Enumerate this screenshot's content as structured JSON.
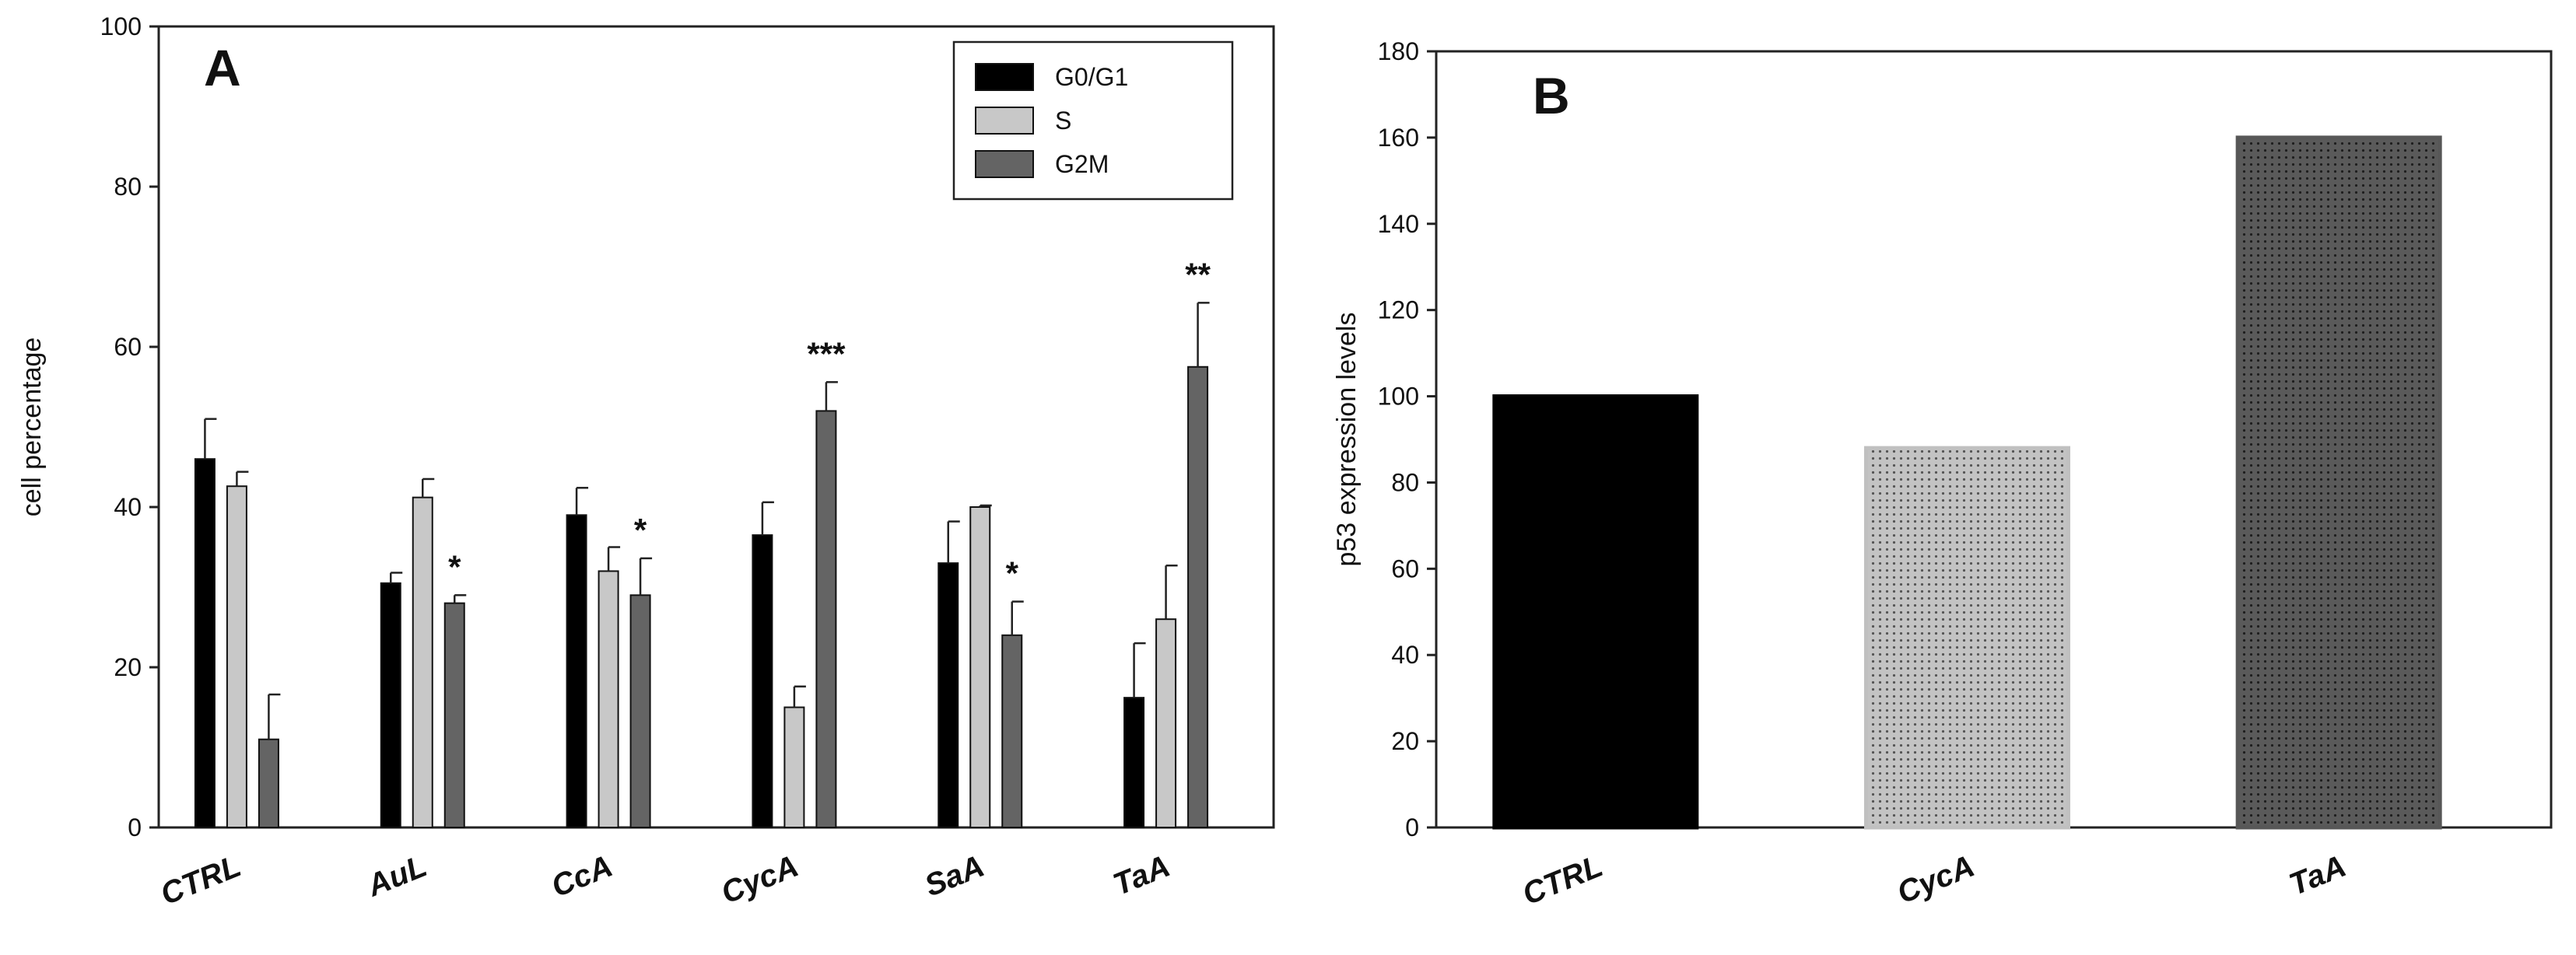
{
  "chart_data": [
    {
      "type": "bar",
      "panel_label": "A",
      "title": "",
      "xlabel": "",
      "ylabel": "cell percentage",
      "ylim": [
        0,
        100
      ],
      "yticks": [
        "0",
        "20",
        "40",
        "60",
        "80",
        "100"
      ],
      "categories": [
        "CTRL",
        "AuL",
        "CcA",
        "CycA",
        "SaA",
        "TaA"
      ],
      "series": [
        {
          "name": "G0/G1",
          "color": "#000000",
          "values": [
            46,
            30.5,
            39,
            36.5,
            33,
            16.2
          ],
          "errors": [
            5,
            1.3,
            3.4,
            4.1,
            5.2,
            6.8
          ]
        },
        {
          "name": "S",
          "color": "#c8c8c8",
          "values": [
            42.6,
            41.2,
            32,
            15,
            40,
            26
          ],
          "errors": [
            1.8,
            2.3,
            3.0,
            2.6,
            0.2,
            6.7
          ]
        },
        {
          "name": "G2M",
          "color": "#646464",
          "values": [
            11,
            28,
            29,
            52,
            24,
            57.5
          ],
          "errors": [
            5.6,
            1.0,
            4.6,
            3.6,
            4.2,
            8.0
          ]
        }
      ],
      "significance": [
        "",
        "*",
        "*",
        "***",
        "*",
        "**"
      ],
      "legend": {
        "position": "top-right",
        "entries": [
          "G0/G1",
          "S",
          "G2M"
        ]
      }
    },
    {
      "type": "bar",
      "panel_label": "B",
      "title": "",
      "xlabel": "",
      "ylabel": "p53 expression levels",
      "ylim": [
        0,
        180
      ],
      "yticks": [
        "0",
        "20",
        "40",
        "60",
        "80",
        "100",
        "120",
        "140",
        "160",
        "180"
      ],
      "categories": [
        "CTRL",
        "CycA",
        "TaA"
      ],
      "values": [
        100,
        88,
        160
      ],
      "colors": [
        "#000000",
        "#c0c0c0",
        "#575757"
      ]
    }
  ]
}
